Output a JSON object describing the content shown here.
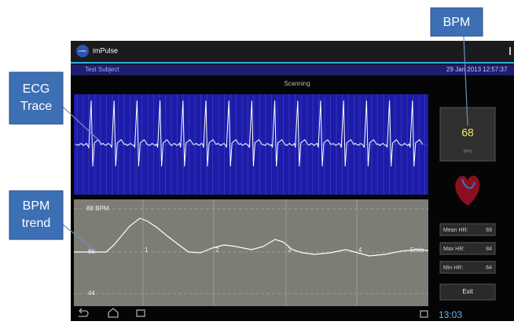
{
  "callouts": {
    "ecg": [
      "ECG",
      "Trace"
    ],
    "trend": [
      "BPM",
      "trend"
    ],
    "bpm": "BPM"
  },
  "app": {
    "name": "imPulse",
    "logo": "pulse",
    "subject": "Test Subject",
    "datetime": "29 Jan 2013 12:57:37",
    "status": "Scanning"
  },
  "bpm_box": {
    "value": "68",
    "unit": "BPM"
  },
  "trend": {
    "top_label": "88 BPM",
    "mid_label": "66",
    "bottom_label": "44",
    "time_labels": [
      "1",
      "2",
      "3",
      "4",
      "5min"
    ]
  },
  "stats": [
    {
      "label": "Mean HR:",
      "value": "69"
    },
    {
      "label": "Max HR:",
      "value": "84"
    },
    {
      "label": "Min HR:",
      "value": "64"
    }
  ],
  "exit": "Exit",
  "clock": "13:03"
}
